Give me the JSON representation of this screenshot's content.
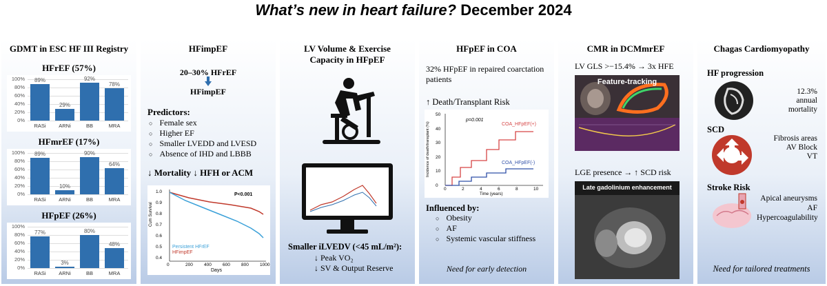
{
  "title_italic": "What’s new in heart failure?",
  "title_rest": " December 2024",
  "p1": {
    "title": "GDMT in ESC HF III Registry",
    "categories": [
      "RASi",
      "ARNi",
      "BB",
      "MRA"
    ],
    "yticks": [
      "100%",
      "80%",
      "60%",
      "40%",
      "20%",
      "0%"
    ],
    "charts": [
      {
        "heading": "HFrEF (57%)",
        "values": [
          89,
          29,
          92,
          78
        ],
        "labels": [
          "89%",
          "29%",
          "92%",
          "78%"
        ]
      },
      {
        "heading": "HFmrEF (17%)",
        "values": [
          89,
          10,
          90,
          64
        ],
        "labels": [
          "89%",
          "10%",
          "90%",
          "64%"
        ]
      },
      {
        "heading": "HFpEF (26%)",
        "values": [
          77,
          3,
          80,
          48
        ],
        "labels": [
          "77%",
          "3%",
          "80%",
          "48%"
        ]
      }
    ]
  },
  "p2": {
    "title": "HFimpEF",
    "from": "20–30% HFrEF",
    "to": "HFimpEF",
    "predictors": "Predictors:",
    "items": [
      "Female sex",
      "Higher EF",
      "Smaller LVEDD and LVESD",
      "Absence of IHD and LBBB"
    ],
    "mortality": "↓ Mortality ↓ HFH or ACM",
    "km": {
      "ylabel": "Cum Survival",
      "xlabel": "Days",
      "p": "P<0.001",
      "legend": [
        "Persistent HFrEF",
        "HFimpEF"
      ],
      "yticks": [
        "1.0",
        "0.9",
        "0.8",
        "0.7",
        "0.6",
        "0.5",
        "0.4"
      ],
      "xticks": [
        "0",
        "200",
        "400",
        "600",
        "800",
        "1000"
      ]
    }
  },
  "p3": {
    "title": "LV Volume & Exercise Capacity in HFpEF",
    "text1": "Smaller iLVEDV (<45 mL/m²):",
    "text2": "↓ Peak VO₂",
    "text3": "↓ SV & Output Reserve"
  },
  "p4": {
    "title": "HFpEF in COA",
    "intro": "32% HFpEF in repaired coarctation patients",
    "risk": "↑ Death/Transplant Risk",
    "chart": {
      "ylabel": "Incidence of death/transplant (%)",
      "xlabel": "Time (years)",
      "p": "p=0.001",
      "s1": "COA_HFpEF(+)",
      "s2": "COA_HFpEF(-)",
      "yticks": [
        "50",
        "40",
        "30",
        "20",
        "10",
        "0"
      ],
      "xticks": [
        "0",
        "2",
        "4",
        "6",
        "8",
        "10"
      ]
    },
    "influenced": "Influenced by:",
    "items": [
      "Obesity",
      "AF",
      "Systemic vascular stiffness"
    ],
    "footer": "Need for early detection"
  },
  "p5": {
    "title": "CMR in DCMmrEF",
    "gls": "LV GLS >−15.4% → 3x HFE",
    "ft": "Feature-tracking",
    "lge": "LGE presence → ↑ SCD risk",
    "lge_label": "Late gadolinium enhancement"
  },
  "p6": {
    "title": "Chagas Cardiomyopathy",
    "prog": "HF progression",
    "prog_note": [
      "12.3%",
      "annual",
      "mortality"
    ],
    "scd": "SCD",
    "scd_note": [
      "Fibrosis areas",
      "AV Block",
      "VT"
    ],
    "stroke": "Stroke Risk",
    "stroke_note": [
      "Apical aneurysms",
      "AF",
      "Hypercoagulability"
    ],
    "footer": "Need for tailored treatments"
  }
}
